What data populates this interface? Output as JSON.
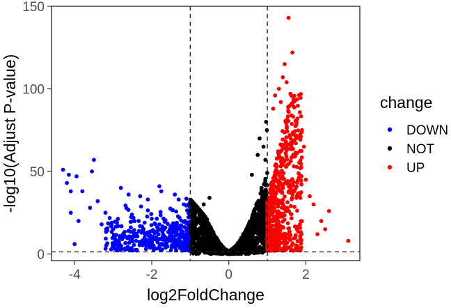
{
  "chart_data": {
    "type": "scatter",
    "title": "",
    "xlabel": "log2FoldChange",
    "ylabel": "-log10(Adjust P-value)",
    "xlim": [
      -4.6,
      3.4
    ],
    "ylim": [
      -4,
      150
    ],
    "x_ticks": [
      {
        "value": -4,
        "label": "-4"
      },
      {
        "value": -2,
        "label": "-2"
      },
      {
        "value": 0,
        "label": "0"
      },
      {
        "value": 2,
        "label": "2"
      }
    ],
    "y_ticks": [
      {
        "value": 0,
        "label": "0"
      },
      {
        "value": 50,
        "label": "50"
      },
      {
        "value": 100,
        "label": "100"
      },
      {
        "value": 150,
        "label": "150"
      }
    ],
    "grid": false,
    "reference_lines": {
      "vertical": [
        -1,
        1
      ],
      "horizontal": [
        1.3
      ]
    },
    "legend": {
      "title": "change",
      "placement": "right",
      "entries": [
        {
          "label": "DOWN",
          "color": "#0000ff"
        },
        {
          "label": "NOT",
          "color": "#000000"
        },
        {
          "label": "UP",
          "color": "#ff0000"
        }
      ]
    },
    "series": [
      {
        "name": "DOWN",
        "color": "#0000ff",
        "points": [
          [
            -4.3,
            51.0
          ],
          [
            -4.15,
            48.0
          ],
          [
            -4.2,
            43.0
          ],
          [
            -4.1,
            38.0
          ],
          [
            -3.95,
            47.0
          ],
          [
            -3.5,
            57.0
          ],
          [
            -3.55,
            50.0
          ],
          [
            -3.8,
            38.0
          ],
          [
            -3.4,
            32.0
          ],
          [
            -3.2,
            25.0
          ],
          [
            -3.6,
            28.0
          ],
          [
            -3.9,
            20.0
          ],
          [
            -4.1,
            25.0
          ],
          [
            -2.8,
            40.0
          ],
          [
            -2.6,
            36.0
          ],
          [
            -2.3,
            35.0
          ],
          [
            -1.8,
            41.0
          ],
          [
            -1.75,
            38.0
          ],
          [
            -1.4,
            36.0
          ],
          [
            -1.3,
            33.0
          ],
          [
            -2.1,
            33.0
          ],
          [
            -3.0,
            15.0
          ],
          [
            -3.3,
            18.0
          ],
          [
            -2.6,
            14.0
          ],
          [
            -4.0,
            6.0
          ],
          [
            -1.1,
            33.5
          ],
          [
            -1.05,
            30.0
          ]
        ],
        "bulk": {
          "x_range": [
            -3.2,
            -1.0
          ],
          "y_range": [
            2,
            30
          ],
          "count": 420,
          "density_skew": 1.8
        }
      },
      {
        "name": "NOT",
        "color": "#000000",
        "points": [
          [
            0.8,
            70.0
          ],
          [
            0.75,
            60.0
          ],
          [
            0.95,
            57.0
          ],
          [
            0.6,
            48.0
          ],
          [
            0.9,
            65.0
          ],
          [
            -0.5,
            34.0
          ],
          [
            -0.65,
            30.0
          ],
          [
            0.99,
            75.0
          ],
          [
            0.97,
            80.0
          ],
          [
            0.85,
            40.0
          ]
        ],
        "bulk": {
          "x_range": [
            -1.0,
            1.0
          ],
          "y_range": [
            0,
            55
          ],
          "count": 1600,
          "shape": "volcano"
        }
      },
      {
        "name": "UP",
        "color": "#ff0000",
        "points": [
          [
            1.55,
            143.0
          ],
          [
            1.65,
            122.0
          ],
          [
            1.45,
            115.0
          ],
          [
            1.4,
            107.0
          ],
          [
            1.5,
            104.0
          ],
          [
            1.3,
            100.0
          ],
          [
            1.2,
            96.0
          ],
          [
            1.6,
            97.0
          ],
          [
            1.35,
            92.0
          ],
          [
            1.15,
            88.0
          ],
          [
            1.55,
            86.0
          ],
          [
            2.1,
            35.0
          ],
          [
            2.2,
            30.0
          ],
          [
            2.0,
            45.0
          ],
          [
            1.85,
            52.0
          ],
          [
            2.4,
            20.0
          ],
          [
            2.6,
            26.0
          ],
          [
            2.3,
            12.0
          ],
          [
            3.1,
            8.0
          ],
          [
            2.5,
            15.0
          ],
          [
            1.95,
            65.0
          ],
          [
            1.75,
            70.0
          ],
          [
            1.9,
            75.0
          ]
        ],
        "bulk": {
          "x_range": [
            1.0,
            1.9
          ],
          "y_range": [
            2,
            95
          ],
          "count": 650,
          "density_skew": 1.6
        }
      }
    ]
  }
}
